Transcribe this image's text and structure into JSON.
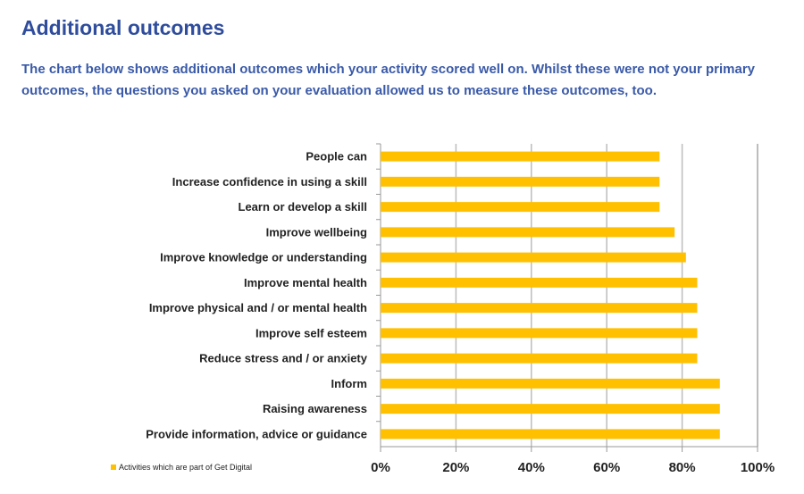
{
  "header": {
    "title": "Additional outcomes",
    "intro": "The chart below shows additional outcomes which your activity scored well on. Whilst these were not your primary outcomes, the questions you asked on your evaluation allowed us to measure these outcomes, too."
  },
  "chart_data": {
    "type": "bar",
    "orientation": "horizontal",
    "categories": [
      "People can",
      "Increase confidence in using a skill",
      "Learn or develop a skill",
      "Improve wellbeing",
      "Improve knowledge or understanding",
      "Improve mental health",
      "Improve physical and / or mental health",
      "Improve self esteem",
      "Reduce stress and / or anxiety",
      "Inform",
      "Raising awareness",
      "Provide information, advice or guidance"
    ],
    "series": [
      {
        "name": "Activities which are part of Get Digital",
        "values": [
          74,
          74,
          74,
          78,
          81,
          84,
          84,
          84,
          84,
          90,
          90,
          90
        ],
        "color": "#FFC000"
      }
    ],
    "xlim": [
      0,
      100
    ],
    "xticks": [
      "0%",
      "20%",
      "40%",
      "60%",
      "80%",
      "100%"
    ],
    "grid": true,
    "legend": "bottom-left"
  }
}
